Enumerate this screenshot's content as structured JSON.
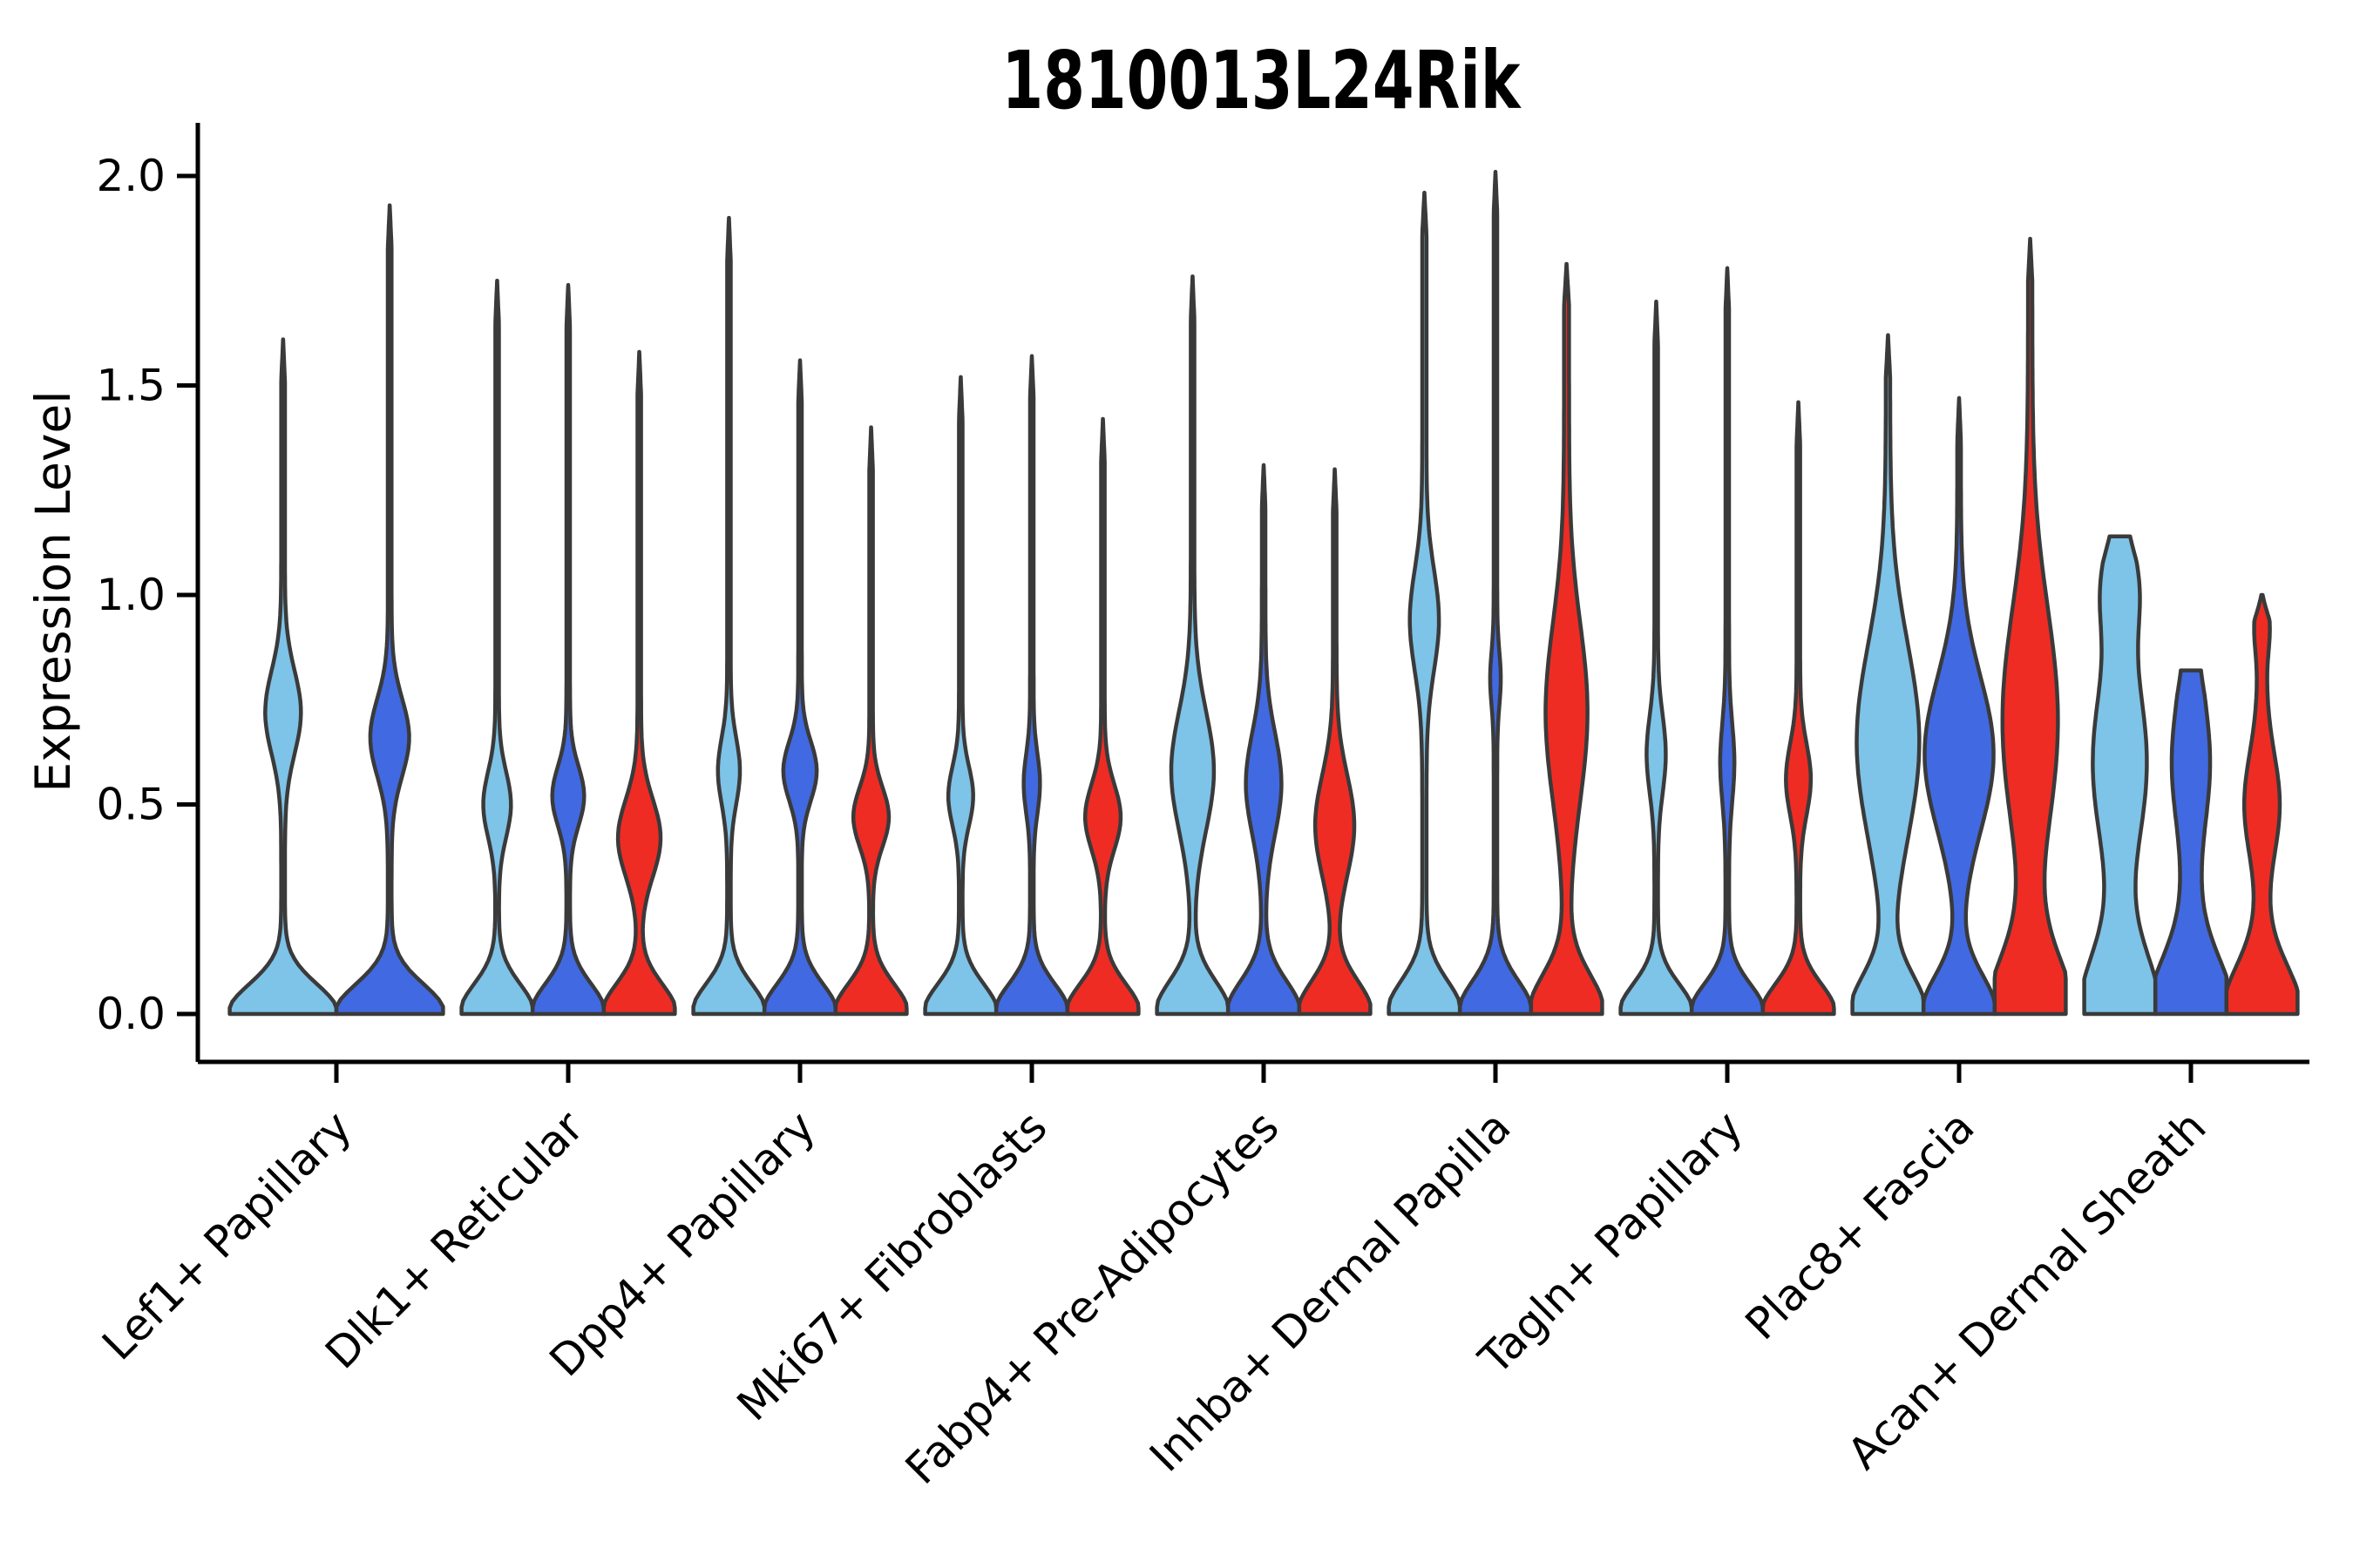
{
  "title": "1810013L24Rik",
  "axes": {
    "ylabel": "Expression Level",
    "yticks": [
      {
        "value": 0.0,
        "label": "0.0"
      },
      {
        "value": 0.5,
        "label": "0.5"
      },
      {
        "value": 1.0,
        "label": "1.0"
      },
      {
        "value": 1.5,
        "label": "1.5"
      },
      {
        "value": 2.0,
        "label": "2.0"
      }
    ],
    "ylim": [
      0,
      2.05
    ]
  },
  "colors": {
    "light_blue": "#7EC3E8",
    "dark_blue": "#4169E1",
    "red": "#EE2C24",
    "violin_outline": "#3A3A3A",
    "axis": "#000000",
    "background": "#FFFFFF"
  },
  "chart_data": {
    "type": "violin",
    "title": "1810013L24Rik",
    "ylabel": "Expression Level",
    "ylim": [
      0,
      2.05
    ],
    "grid": false,
    "legend": null,
    "categories": [
      "Lef1+ Papillary",
      "Dlk1+ Reticular",
      "Dpp4+ Papillary",
      "Mki67+ Fibroblasts",
      "Fabp4+ Pre-Adipocytes",
      "Inhba+ Dermal Papilla",
      "Tagln+ Papillary",
      "Plac8+ Fascia",
      "Acan+ Dermal Sheath"
    ],
    "series_fills": [
      "light_blue",
      "dark_blue",
      "red"
    ],
    "groups": [
      {
        "category": "Lef1+ Papillary",
        "violins": [
          {
            "fill": "light_blue",
            "max": 1.61,
            "shape": {
              "base_sigma": 0.1,
              "stem": 0.035,
              "bulges": [
                [
                  0.72,
                  0.3,
                  0.14
                ]
              ]
            }
          },
          {
            "fill": "dark_blue",
            "max": 1.93,
            "shape": {
              "base_sigma": 0.1,
              "stem": 0.035,
              "bulges": [
                [
                  0.66,
                  0.33,
                  0.13
                ]
              ]
            }
          }
        ]
      },
      {
        "category": "Dlk1+ Reticular",
        "violins": [
          {
            "fill": "light_blue",
            "max": 1.75,
            "shape": {
              "base_sigma": 0.1,
              "stem": 0.05,
              "bulges": [
                [
                  0.5,
                  0.34,
                  0.11
                ]
              ]
            }
          },
          {
            "fill": "dark_blue",
            "max": 1.74,
            "shape": {
              "base_sigma": 0.1,
              "stem": 0.05,
              "bulges": [
                [
                  0.52,
                  0.4,
                  0.1
                ]
              ]
            }
          },
          {
            "fill": "red",
            "max": 1.58,
            "shape": {
              "base_sigma": 0.1,
              "stem": 0.05,
              "bulges": [
                [
                  0.42,
                  0.55,
                  0.13
                ]
              ]
            }
          }
        ]
      },
      {
        "category": "Dpp4+ Papillary",
        "violins": [
          {
            "fill": "light_blue",
            "max": 1.9,
            "shape": {
              "base_sigma": 0.1,
              "stem": 0.05,
              "bulges": [
                [
                  0.58,
                  0.26,
                  0.11
                ]
              ]
            }
          },
          {
            "fill": "dark_blue",
            "max": 1.56,
            "shape": {
              "base_sigma": 0.1,
              "stem": 0.05,
              "bulges": [
                [
                  0.58,
                  0.42,
                  0.1
                ]
              ]
            }
          },
          {
            "fill": "red",
            "max": 1.4,
            "shape": {
              "base_sigma": 0.1,
              "stem": 0.05,
              "bulges": [
                [
                  0.47,
                  0.45,
                  0.1
                ]
              ]
            }
          }
        ]
      },
      {
        "category": "Mki67+ Fibroblasts",
        "violins": [
          {
            "fill": "light_blue",
            "max": 1.52,
            "shape": {
              "base_sigma": 0.1,
              "stem": 0.05,
              "bulges": [
                [
                  0.52,
                  0.3,
                  0.1
                ]
              ]
            }
          },
          {
            "fill": "dark_blue",
            "max": 1.57,
            "shape": {
              "base_sigma": 0.1,
              "stem": 0.05,
              "bulges": [
                [
                  0.55,
                  0.18,
                  0.1
                ]
              ]
            }
          },
          {
            "fill": "red",
            "max": 1.42,
            "shape": {
              "base_sigma": 0.1,
              "stem": 0.05,
              "bulges": [
                [
                  0.47,
                  0.45,
                  0.11
                ]
              ]
            }
          }
        ]
      },
      {
        "category": "Fabp4+ Pre-Adipocytes",
        "violins": [
          {
            "fill": "light_blue",
            "max": 1.76,
            "shape": {
              "base_sigma": 0.11,
              "stem": 0.05,
              "bulges": [
                [
                  0.58,
                  0.55,
                  0.2
                ]
              ]
            }
          },
          {
            "fill": "dark_blue",
            "max": 1.31,
            "shape": {
              "base_sigma": 0.11,
              "stem": 0.05,
              "bulges": [
                [
                  0.55,
                  0.45,
                  0.17
                ]
              ]
            }
          },
          {
            "fill": "red",
            "max": 1.3,
            "shape": {
              "base_sigma": 0.11,
              "stem": 0.05,
              "bulges": [
                [
                  0.45,
                  0.5,
                  0.17
                ]
              ]
            }
          }
        ]
      },
      {
        "category": "Inhba+ Dermal Papilla",
        "violins": [
          {
            "fill": "light_blue",
            "max": 1.96,
            "shape": {
              "base_sigma": 0.11,
              "stem": 0.06,
              "bulges": [
                [
                  0.94,
                  0.35,
                  0.17
                ]
              ]
            }
          },
          {
            "fill": "dark_blue",
            "max": 2.01,
            "shape": {
              "base_sigma": 0.11,
              "stem": 0.05,
              "bulges": [
                [
                  0.8,
                  0.1,
                  0.09
                ]
              ]
            }
          },
          {
            "fill": "red",
            "max": 1.79,
            "shape": {
              "base_sigma": 0.13,
              "stem": 0.07,
              "bulges": [
                [
                  0.72,
                  0.52,
                  0.3
                ]
              ]
            }
          }
        ]
      },
      {
        "category": "Tagln+ Papillary",
        "violins": [
          {
            "fill": "light_blue",
            "max": 1.7,
            "shape": {
              "base_sigma": 0.1,
              "stem": 0.05,
              "bulges": [
                [
                  0.62,
                  0.22,
                  0.13
                ]
              ]
            }
          },
          {
            "fill": "dark_blue",
            "max": 1.78,
            "shape": {
              "base_sigma": 0.1,
              "stem": 0.05,
              "bulges": [
                [
                  0.6,
                  0.15,
                  0.13
                ]
              ]
            }
          },
          {
            "fill": "red",
            "max": 1.46,
            "shape": {
              "base_sigma": 0.1,
              "stem": 0.05,
              "bulges": [
                [
                  0.56,
                  0.3,
                  0.12
                ]
              ]
            }
          }
        ]
      },
      {
        "category": "Plac8+ Fascia",
        "violins": [
          {
            "fill": "light_blue",
            "max": 1.62,
            "shape": {
              "base_sigma": 0.13,
              "stem": 0.06,
              "bulges": [
                [
                  0.65,
                  0.82,
                  0.33
                ]
              ]
            }
          },
          {
            "fill": "dark_blue",
            "max": 1.47,
            "shape": {
              "base_sigma": 0.13,
              "stem": 0.05,
              "bulges": [
                [
                  0.62,
                  0.92,
                  0.26
                ]
              ]
            }
          },
          {
            "fill": "red",
            "max": 1.85,
            "shape": {
              "base_sigma": 0.15,
              "stem": 0.06,
              "bulges": [
                [
                  0.7,
                  0.72,
                  0.38
                ],
                [
                  0.15,
                  0.25,
                  0.15
                ]
              ]
            }
          }
        ]
      },
      {
        "category": "Acan+ Dermal Sheath",
        "violins": [
          {
            "fill": "light_blue",
            "max": 1.14,
            "shape": {
              "base_sigma": 0.2,
              "stem": 0.14,
              "bulges": [
                [
                  0.6,
                  0.62,
                  0.28
                ],
                [
                  1.02,
                  0.35,
                  0.15
                ]
              ],
              "tip": 0.85,
              "tip_len": 0.06
            }
          },
          {
            "fill": "dark_blue",
            "max": 0.82,
            "shape": {
              "base_sigma": 0.18,
              "stem": 0.22,
              "bulges": [
                [
                  0.6,
                  0.32,
                  0.2
                ]
              ],
              "tip": 0.9,
              "tip_len": 0.06
            }
          },
          {
            "fill": "red",
            "max": 1.0,
            "shape": {
              "base_sigma": 0.16,
              "stem": 0.12,
              "bulges": [
                [
                  0.5,
                  0.38,
                  0.17
                ],
                [
                  0.92,
                  0.1,
                  0.08
                ]
              ],
              "tip": 0.12,
              "tip_len": 0.06
            }
          }
        ]
      }
    ]
  }
}
